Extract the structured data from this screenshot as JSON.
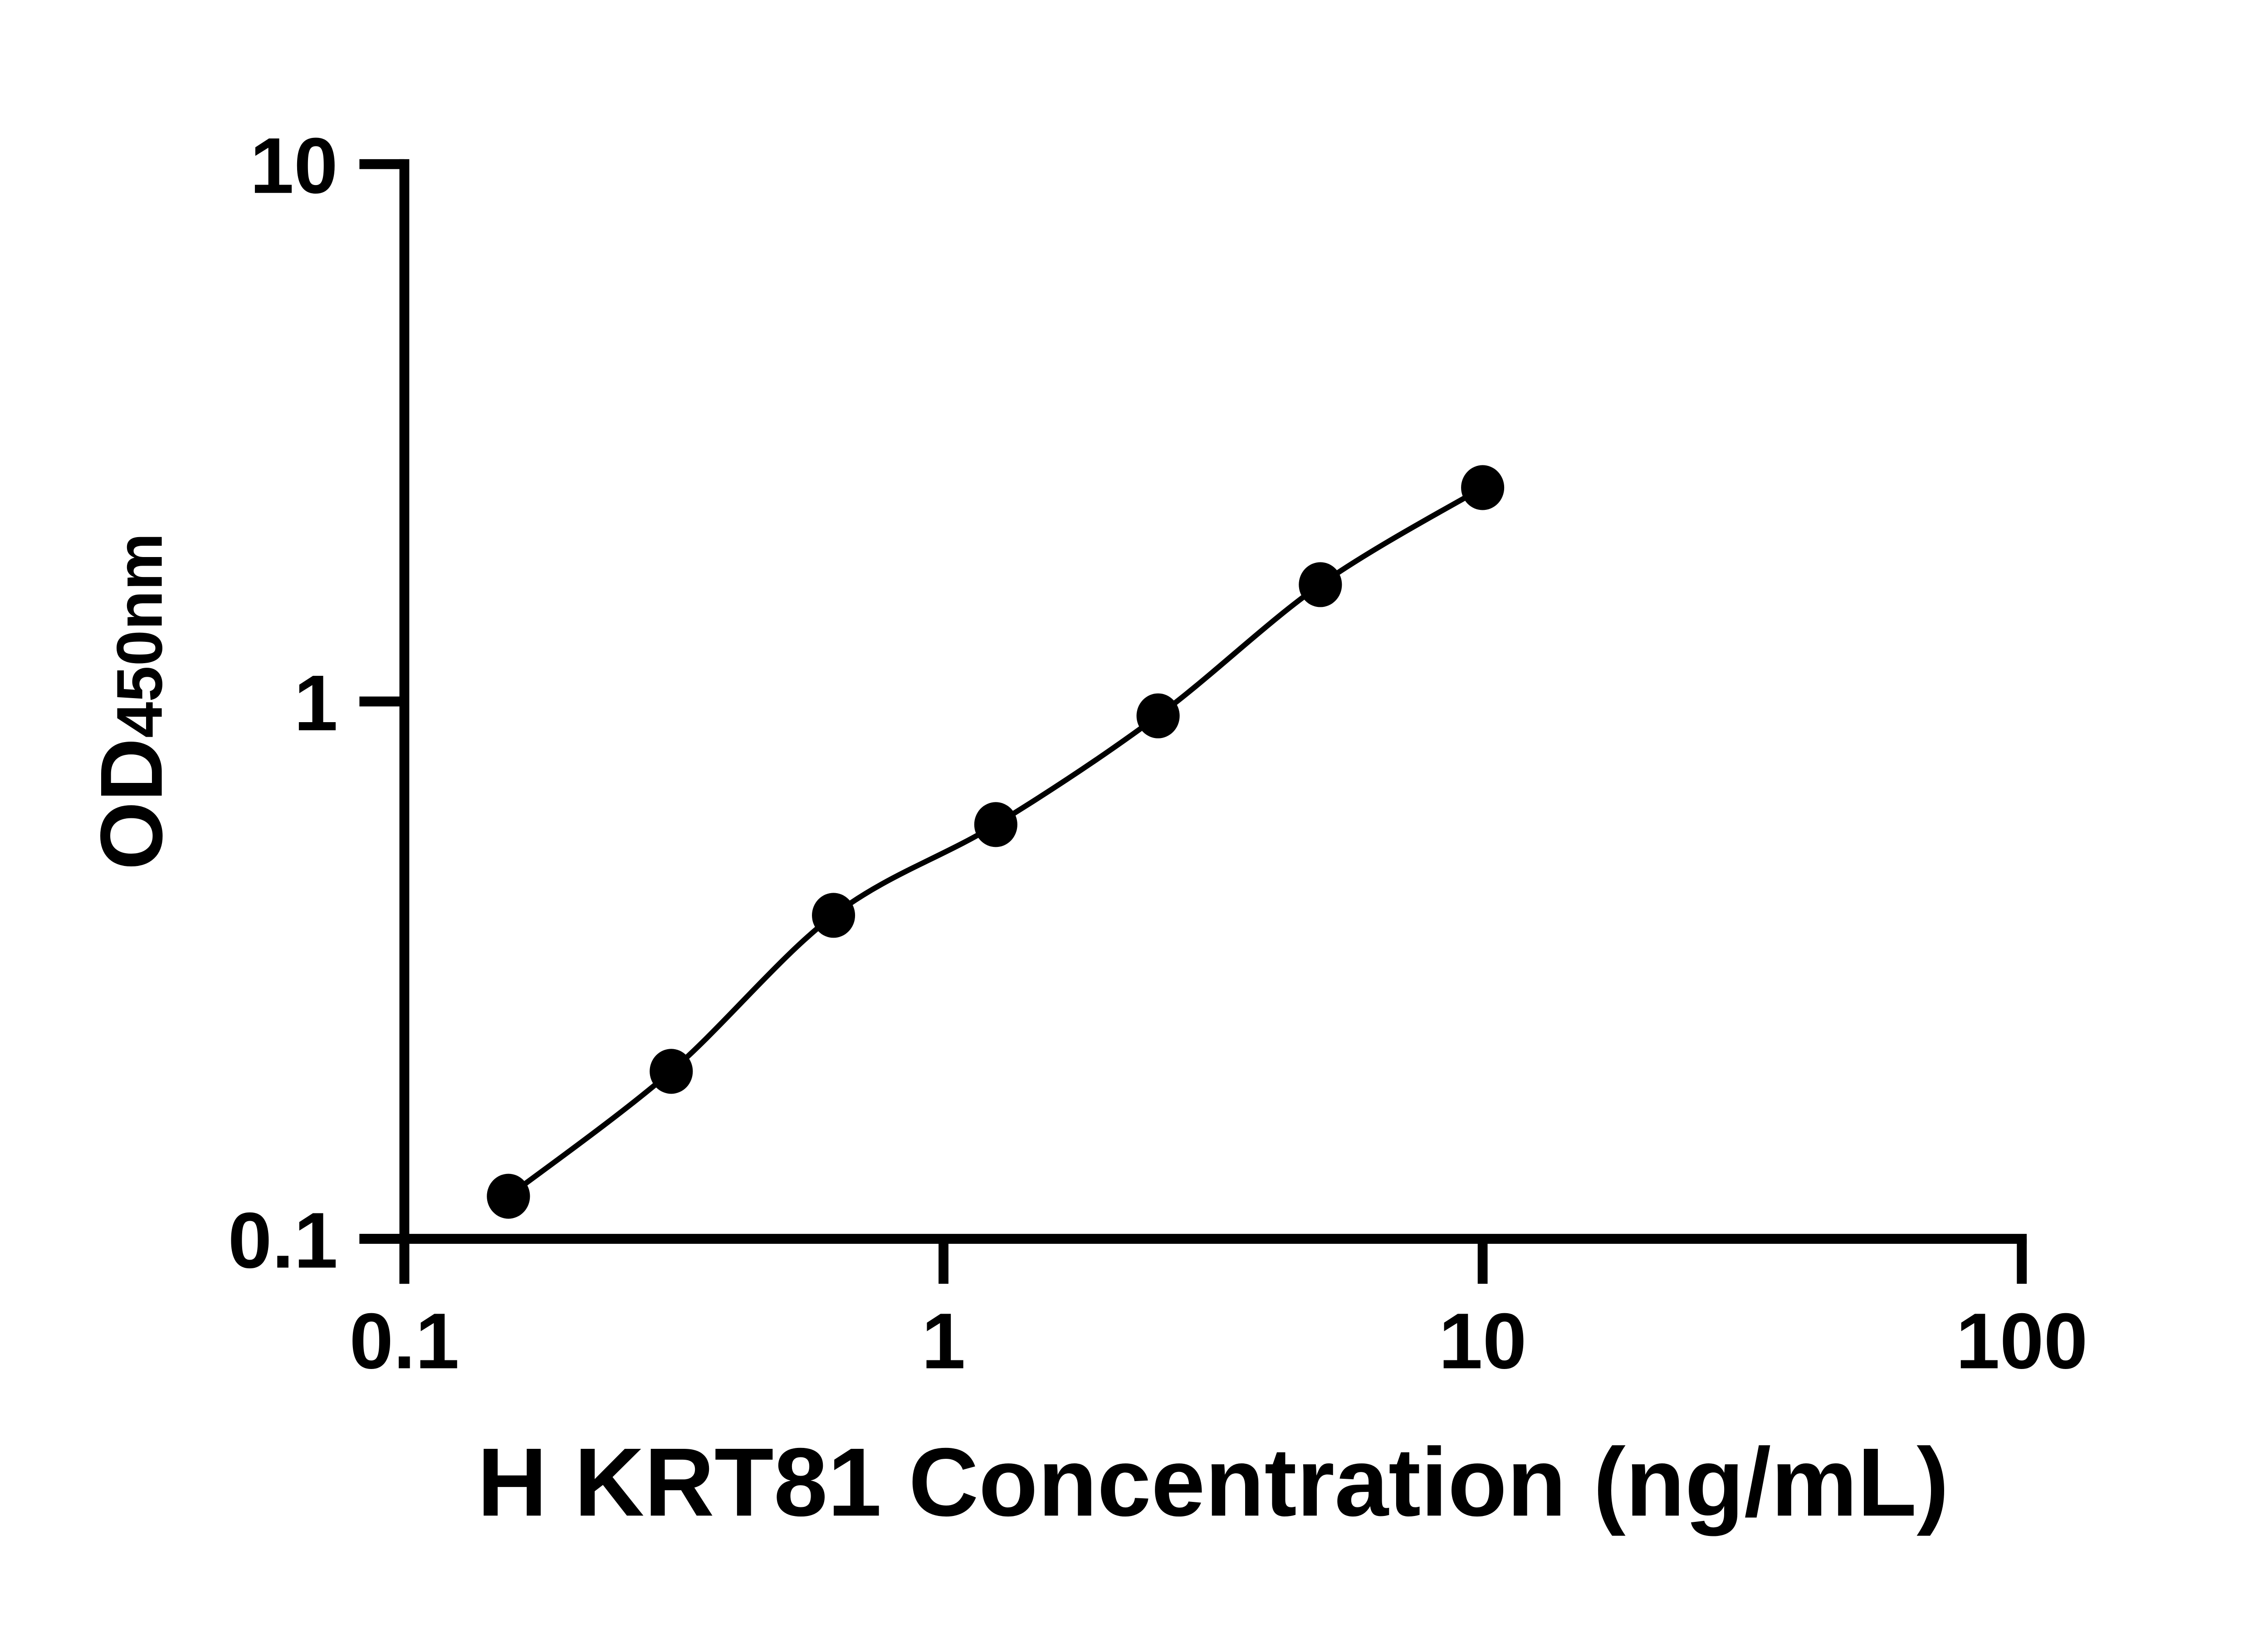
{
  "chart_data": {
    "type": "scatter",
    "title": "",
    "xlabel": "H KRT81 Concentration (ng/mL)",
    "ylabel": "OD",
    "ylabel_subscript": "450nm",
    "x_scale": "log",
    "y_scale": "log",
    "xlim": [
      0.1,
      100
    ],
    "ylim": [
      0.1,
      10
    ],
    "x_ticks": [
      0.1,
      1,
      10,
      100
    ],
    "x_tick_labels": [
      "0.1",
      "1",
      "10",
      "100"
    ],
    "y_ticks": [
      0.1,
      1,
      10
    ],
    "y_tick_labels": [
      "0.1",
      "1",
      "10"
    ],
    "grid": false,
    "legend_position": "none",
    "series": [
      {
        "marker": "filled-circle",
        "line": "smooth-fit-curve",
        "x": [
          0.156,
          0.3125,
          0.625,
          1.25,
          2.5,
          5,
          10
        ],
        "y": [
          0.12,
          0.205,
          0.4,
          0.59,
          0.94,
          1.65,
          2.5
        ]
      }
    ]
  },
  "colors": {
    "foreground": "#000000",
    "background": "#ffffff"
  }
}
